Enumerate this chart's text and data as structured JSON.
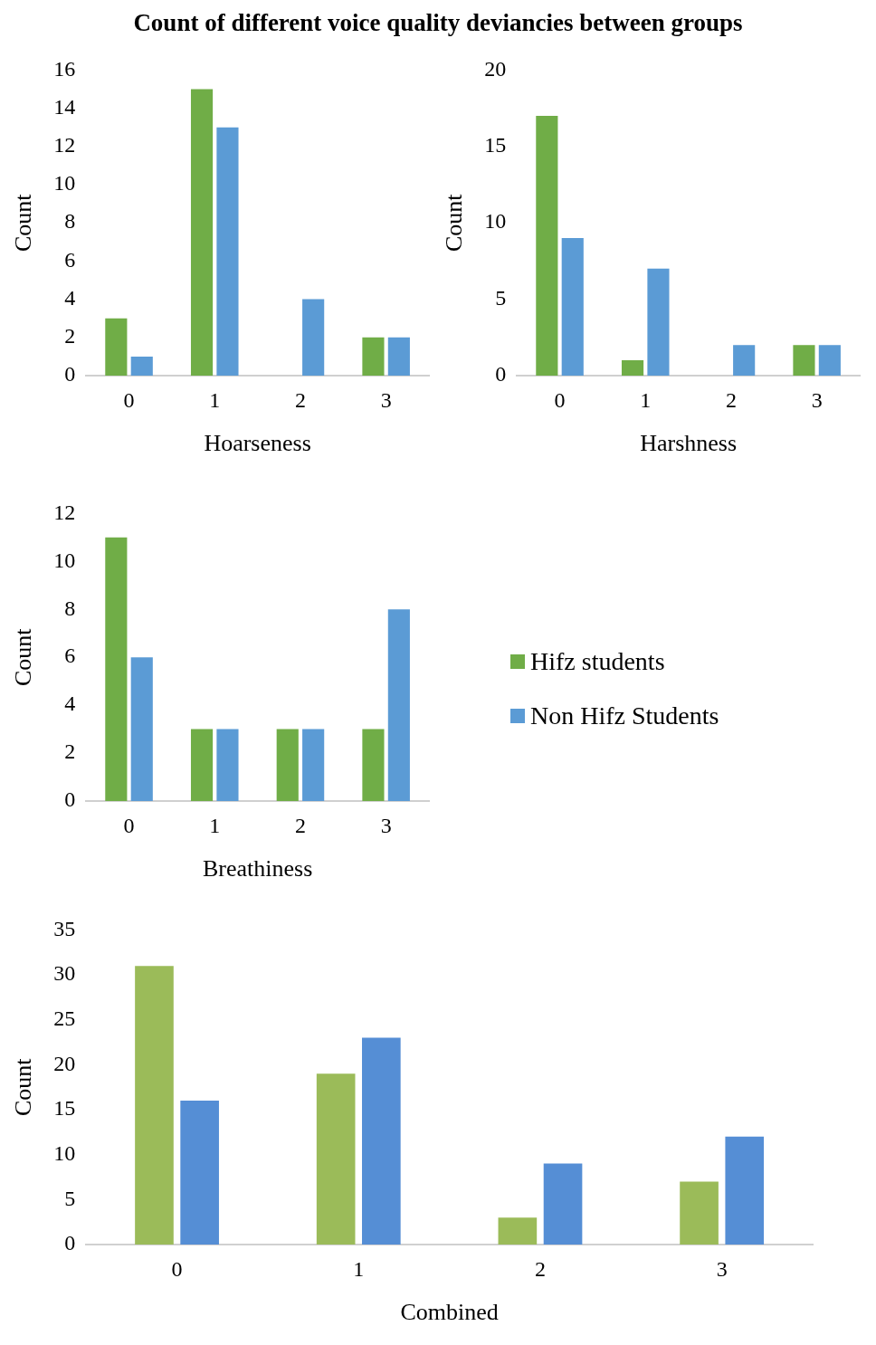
{
  "chart_data": [
    {
      "type": "bar",
      "title": "Count of different voice quality deviancies between groups",
      "xlabel": "Hoarseness",
      "ylabel": "Count",
      "categories": [
        "0",
        "1",
        "2",
        "3"
      ],
      "series": [
        {
          "color": "#70ad47",
          "values": [
            3,
            15,
            0,
            2
          ]
        },
        {
          "color": "#5b9bd5",
          "values": [
            1,
            13,
            4,
            2
          ]
        }
      ],
      "ylim": [
        0,
        16
      ],
      "yticks": [
        0,
        2,
        4,
        6,
        8,
        10,
        12,
        14,
        16
      ],
      "grid": false,
      "legend": false
    },
    {
      "type": "bar",
      "xlabel": "Harshness",
      "ylabel": "Count",
      "categories": [
        "0",
        "1",
        "2",
        "3"
      ],
      "series": [
        {
          "color": "#70ad47",
          "values": [
            17,
            1,
            0,
            2
          ]
        },
        {
          "color": "#5b9bd5",
          "values": [
            9,
            7,
            2,
            2
          ]
        }
      ],
      "ylim": [
        0,
        20
      ],
      "yticks": [
        0,
        5,
        10,
        15,
        20
      ],
      "grid": false,
      "legend": false
    },
    {
      "type": "bar",
      "xlabel": "Breathiness",
      "ylabel": "Count",
      "categories": [
        "0",
        "1",
        "2",
        "3"
      ],
      "series": [
        {
          "name": "Hifz students",
          "color": "#70ad47",
          "values": [
            11,
            3,
            3,
            3
          ]
        },
        {
          "name": "Non Hifz Students",
          "color": "#5b9bd5",
          "values": [
            6,
            3,
            3,
            8
          ]
        }
      ],
      "ylim": [
        0,
        12
      ],
      "yticks": [
        0,
        2,
        4,
        6,
        8,
        10,
        12
      ],
      "grid": false,
      "legend": "right"
    },
    {
      "type": "bar",
      "xlabel": "Combined",
      "ylabel": "Count",
      "categories": [
        "0",
        "1",
        "2",
        "3"
      ],
      "series": [
        {
          "color": "#9bbb59",
          "values": [
            31,
            19,
            3,
            7
          ]
        },
        {
          "color": "#558ed5",
          "values": [
            16,
            23,
            9,
            12
          ]
        }
      ],
      "ylim": [
        0,
        35
      ],
      "yticks": [
        0,
        5,
        10,
        15,
        20,
        25,
        30,
        35
      ],
      "grid": false,
      "legend": false
    }
  ]
}
